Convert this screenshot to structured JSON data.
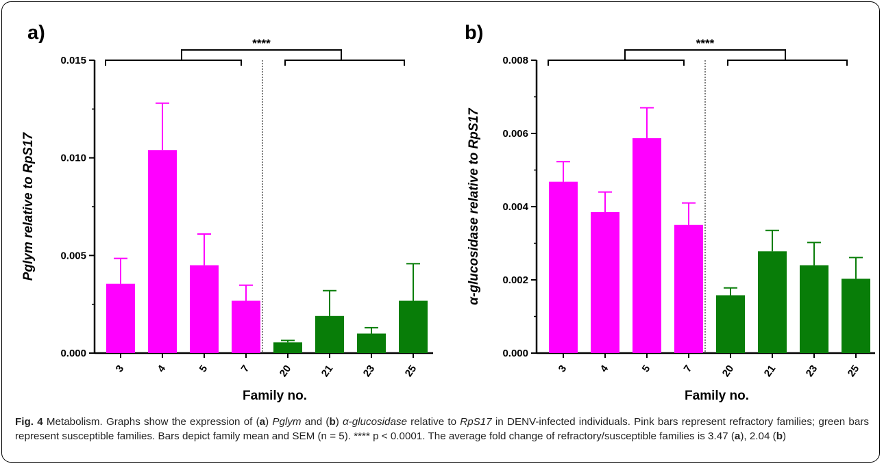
{
  "panels": [
    {
      "label": "a)"
    },
    {
      "label": "b)"
    }
  ],
  "colors": {
    "refractory": "#ff00ff",
    "susceptible": "#087d08"
  },
  "significance": "****",
  "caption": {
    "fig_label": "Fig. 4",
    "s1": " Metabolism. Graphs show the expression of (",
    "a": "a",
    "s2": ") ",
    "gene_a": "Pglym",
    "s3": " and (",
    "b": "b",
    "s4": ") ",
    "gene_b": "α-glucosidase",
    "s5": " relative to ",
    "ref_gene": "RpS17",
    "s6": " in DENV-infected individuals. Pink bars represent refractory families; green bars represent susceptible families. Bars depict family mean and SEM (n = 5). **** p < 0.0001. The average fold change of refractory/susceptible families is 3.47 (",
    "a2": "a",
    "s7": "), 2.04 (",
    "b2": "b",
    "s8": ")"
  },
  "chart_data": [
    {
      "type": "bar",
      "categories": [
        "3",
        "4",
        "5",
        "7",
        "20",
        "21",
        "23",
        "25"
      ],
      "groups": [
        "refractory",
        "refractory",
        "refractory",
        "refractory",
        "susceptible",
        "susceptible",
        "susceptible",
        "susceptible"
      ],
      "values": [
        0.00355,
        0.0104,
        0.0045,
        0.00268,
        0.00055,
        0.0019,
        0.001,
        0.00268
      ],
      "sem": [
        0.0013,
        0.0024,
        0.0016,
        0.0008,
        0.0001,
        0.0013,
        0.0003,
        0.0019
      ],
      "ylim": [
        0,
        0.015
      ],
      "yticks": [
        "0.000",
        "0.005",
        "0.010",
        "0.015"
      ],
      "xlabel": "Family no.",
      "ylabel": "Pglym relative to RpS17"
    },
    {
      "type": "bar",
      "categories": [
        "3",
        "4",
        "5",
        "7",
        "20",
        "21",
        "23",
        "25"
      ],
      "groups": [
        "refractory",
        "refractory",
        "refractory",
        "refractory",
        "susceptible",
        "susceptible",
        "susceptible",
        "susceptible"
      ],
      "values": [
        0.00468,
        0.00385,
        0.00587,
        0.0035,
        0.00158,
        0.00278,
        0.0024,
        0.00203
      ],
      "sem": [
        0.00055,
        0.00055,
        0.00083,
        0.0006,
        0.0002,
        0.00057,
        0.00062,
        0.00058
      ],
      "ylim": [
        0,
        0.008
      ],
      "yticks": [
        "0.000",
        "0.002",
        "0.004",
        "0.006",
        "0.008"
      ],
      "xlabel": "Family no.",
      "ylabel": "α-glucosidase relative to RpS17"
    }
  ]
}
